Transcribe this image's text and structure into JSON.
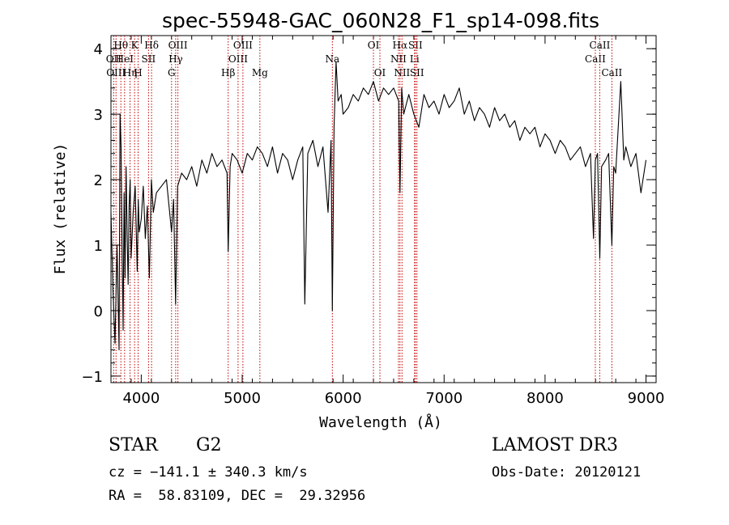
{
  "chart_data": {
    "type": "line",
    "title": "spec-55948-GAC_060N28_F1_sp14-098.fits",
    "xlabel": "Wavelength (Å)",
    "ylabel": "Flux (relative)",
    "xlim": [
      3700,
      9100
    ],
    "ylim": [
      -1.1,
      4.2
    ],
    "xticks": [
      4000,
      5000,
      6000,
      7000,
      8000,
      9000
    ],
    "yticks": [
      -1,
      0,
      1,
      2,
      3,
      4
    ],
    "series": [
      {
        "x": [
          3700,
          3720,
          3740,
          3760,
          3780,
          3790,
          3800,
          3810,
          3820,
          3830,
          3840,
          3850,
          3860,
          3870,
          3880,
          3890,
          3900,
          3920,
          3940,
          3960,
          3970,
          3980,
          4000,
          4020,
          4040,
          4060,
          4080,
          4100,
          4120,
          4150,
          4200,
          4250,
          4300,
          4320,
          4340,
          4360,
          4400,
          4450,
          4500,
          4550,
          4600,
          4650,
          4700,
          4750,
          4800,
          4850,
          4861,
          4880,
          4900,
          4950,
          5000,
          5050,
          5100,
          5150,
          5200,
          5250,
          5300,
          5350,
          5400,
          5450,
          5500,
          5550,
          5600,
          5620,
          5650,
          5700,
          5750,
          5800,
          5850,
          5880,
          5893,
          5910,
          5930,
          5950,
          5980,
          6000,
          6050,
          6100,
          6150,
          6200,
          6250,
          6300,
          6350,
          6400,
          6450,
          6500,
          6550,
          6563,
          6580,
          6600,
          6650,
          6700,
          6750,
          6800,
          6850,
          6900,
          6950,
          7000,
          7050,
          7100,
          7150,
          7200,
          7250,
          7300,
          7350,
          7400,
          7450,
          7500,
          7550,
          7600,
          7650,
          7700,
          7750,
          7800,
          7850,
          7900,
          7950,
          8000,
          8050,
          8100,
          8150,
          8200,
          8250,
          8300,
          8350,
          8400,
          8450,
          8480,
          8498,
          8520,
          8542,
          8560,
          8600,
          8630,
          8662,
          8680,
          8700,
          8750,
          8780,
          8800,
          8850,
          8900,
          8950,
          9000
        ],
        "values": [
          1.5,
          0.3,
          -0.5,
          1.0,
          -0.6,
          3.0,
          2.5,
          1.0,
          -0.3,
          1.8,
          0.5,
          2.2,
          1.2,
          0.4,
          1.6,
          2.0,
          0.8,
          1.5,
          1.9,
          0.6,
          1.7,
          1.2,
          1.4,
          1.9,
          1.1,
          1.6,
          0.5,
          2.0,
          1.5,
          1.8,
          1.9,
          2.0,
          1.2,
          1.7,
          0.1,
          1.9,
          2.1,
          2.0,
          2.2,
          1.9,
          2.3,
          2.1,
          2.4,
          2.2,
          2.3,
          2.1,
          0.9,
          2.2,
          2.4,
          2.3,
          2.1,
          2.4,
          2.3,
          2.5,
          2.4,
          2.2,
          2.5,
          2.1,
          2.4,
          2.3,
          2.0,
          2.3,
          2.5,
          0.1,
          2.4,
          2.6,
          2.2,
          2.5,
          1.5,
          2.6,
          0.0,
          2.8,
          3.8,
          3.2,
          3.3,
          3.0,
          3.1,
          3.3,
          3.2,
          3.4,
          3.3,
          3.5,
          3.2,
          3.4,
          3.3,
          3.4,
          3.2,
          1.8,
          3.4,
          3.0,
          3.3,
          3.0,
          2.8,
          3.3,
          3.1,
          3.2,
          3.0,
          3.3,
          3.1,
          3.2,
          3.4,
          3.0,
          3.2,
          2.9,
          3.1,
          3.0,
          2.8,
          3.1,
          2.9,
          3.0,
          2.8,
          2.9,
          2.6,
          2.8,
          2.7,
          2.8,
          2.5,
          2.7,
          2.6,
          2.4,
          2.6,
          2.5,
          2.3,
          2.4,
          2.5,
          2.2,
          2.4,
          1.1,
          2.3,
          2.4,
          0.8,
          2.2,
          2.3,
          2.4,
          1.0,
          2.2,
          2.1,
          3.5,
          2.3,
          2.5,
          2.2,
          2.4,
          1.8,
          2.3
        ]
      }
    ],
    "lines": [
      {
        "x": 3727,
        "label": "OII",
        "row": 1
      },
      {
        "x": 3750,
        "label": "OIII",
        "row": 2
      },
      {
        "x": 3798,
        "label": "Hθ",
        "row": 0
      },
      {
        "x": 3835,
        "label": "HeI",
        "row": 1
      },
      {
        "x": 3889,
        "label": "Hη",
        "row": 2
      },
      {
        "x": 3934,
        "label": "K",
        "row": 0
      },
      {
        "x": 3969,
        "label": "H",
        "row": 2
      },
      {
        "x": 4072,
        "label": "SII",
        "row": 1
      },
      {
        "x": 4102,
        "label": "Hδ",
        "row": 0
      },
      {
        "x": 4300,
        "label": "G",
        "row": 2
      },
      {
        "x": 4341,
        "label": "Hγ",
        "row": 1
      },
      {
        "x": 4363,
        "label": "OIII",
        "row": 0
      },
      {
        "x": 4861,
        "label": "Hβ",
        "row": 2
      },
      {
        "x": 4959,
        "label": "OIII",
        "row": 1
      },
      {
        "x": 5007,
        "label": "OIII",
        "row": 0
      },
      {
        "x": 5175,
        "label": "Mg",
        "row": 2
      },
      {
        "x": 5893,
        "label": "Na",
        "row": 1
      },
      {
        "x": 6300,
        "label": "OI",
        "row": 0
      },
      {
        "x": 6364,
        "label": "OI",
        "row": 2
      },
      {
        "x": 6548,
        "label": "NII",
        "row": 1
      },
      {
        "x": 6563,
        "label": "Hα",
        "row": 0
      },
      {
        "x": 6583,
        "label": "NII",
        "row": 2
      },
      {
        "x": 6707,
        "label": "Li",
        "row": 1
      },
      {
        "x": 6716,
        "label": "SII",
        "row": 0
      },
      {
        "x": 6731,
        "label": "SII",
        "row": 2
      },
      {
        "x": 8498,
        "label": "CaII",
        "row": 1
      },
      {
        "x": 8542,
        "label": "CaII",
        "row": 0
      },
      {
        "x": 8662,
        "label": "CaII",
        "row": 2
      }
    ],
    "grid": false,
    "legend": "none"
  },
  "info": {
    "object_class": "STAR",
    "subclass": "G2",
    "survey": "LAMOST DR3",
    "cz": "cz = −141.1 ± 340.3 km/s",
    "obs_date": "Obs-Date: 20120121",
    "coords": "RA =  58.83109, DEC =  29.32956"
  }
}
